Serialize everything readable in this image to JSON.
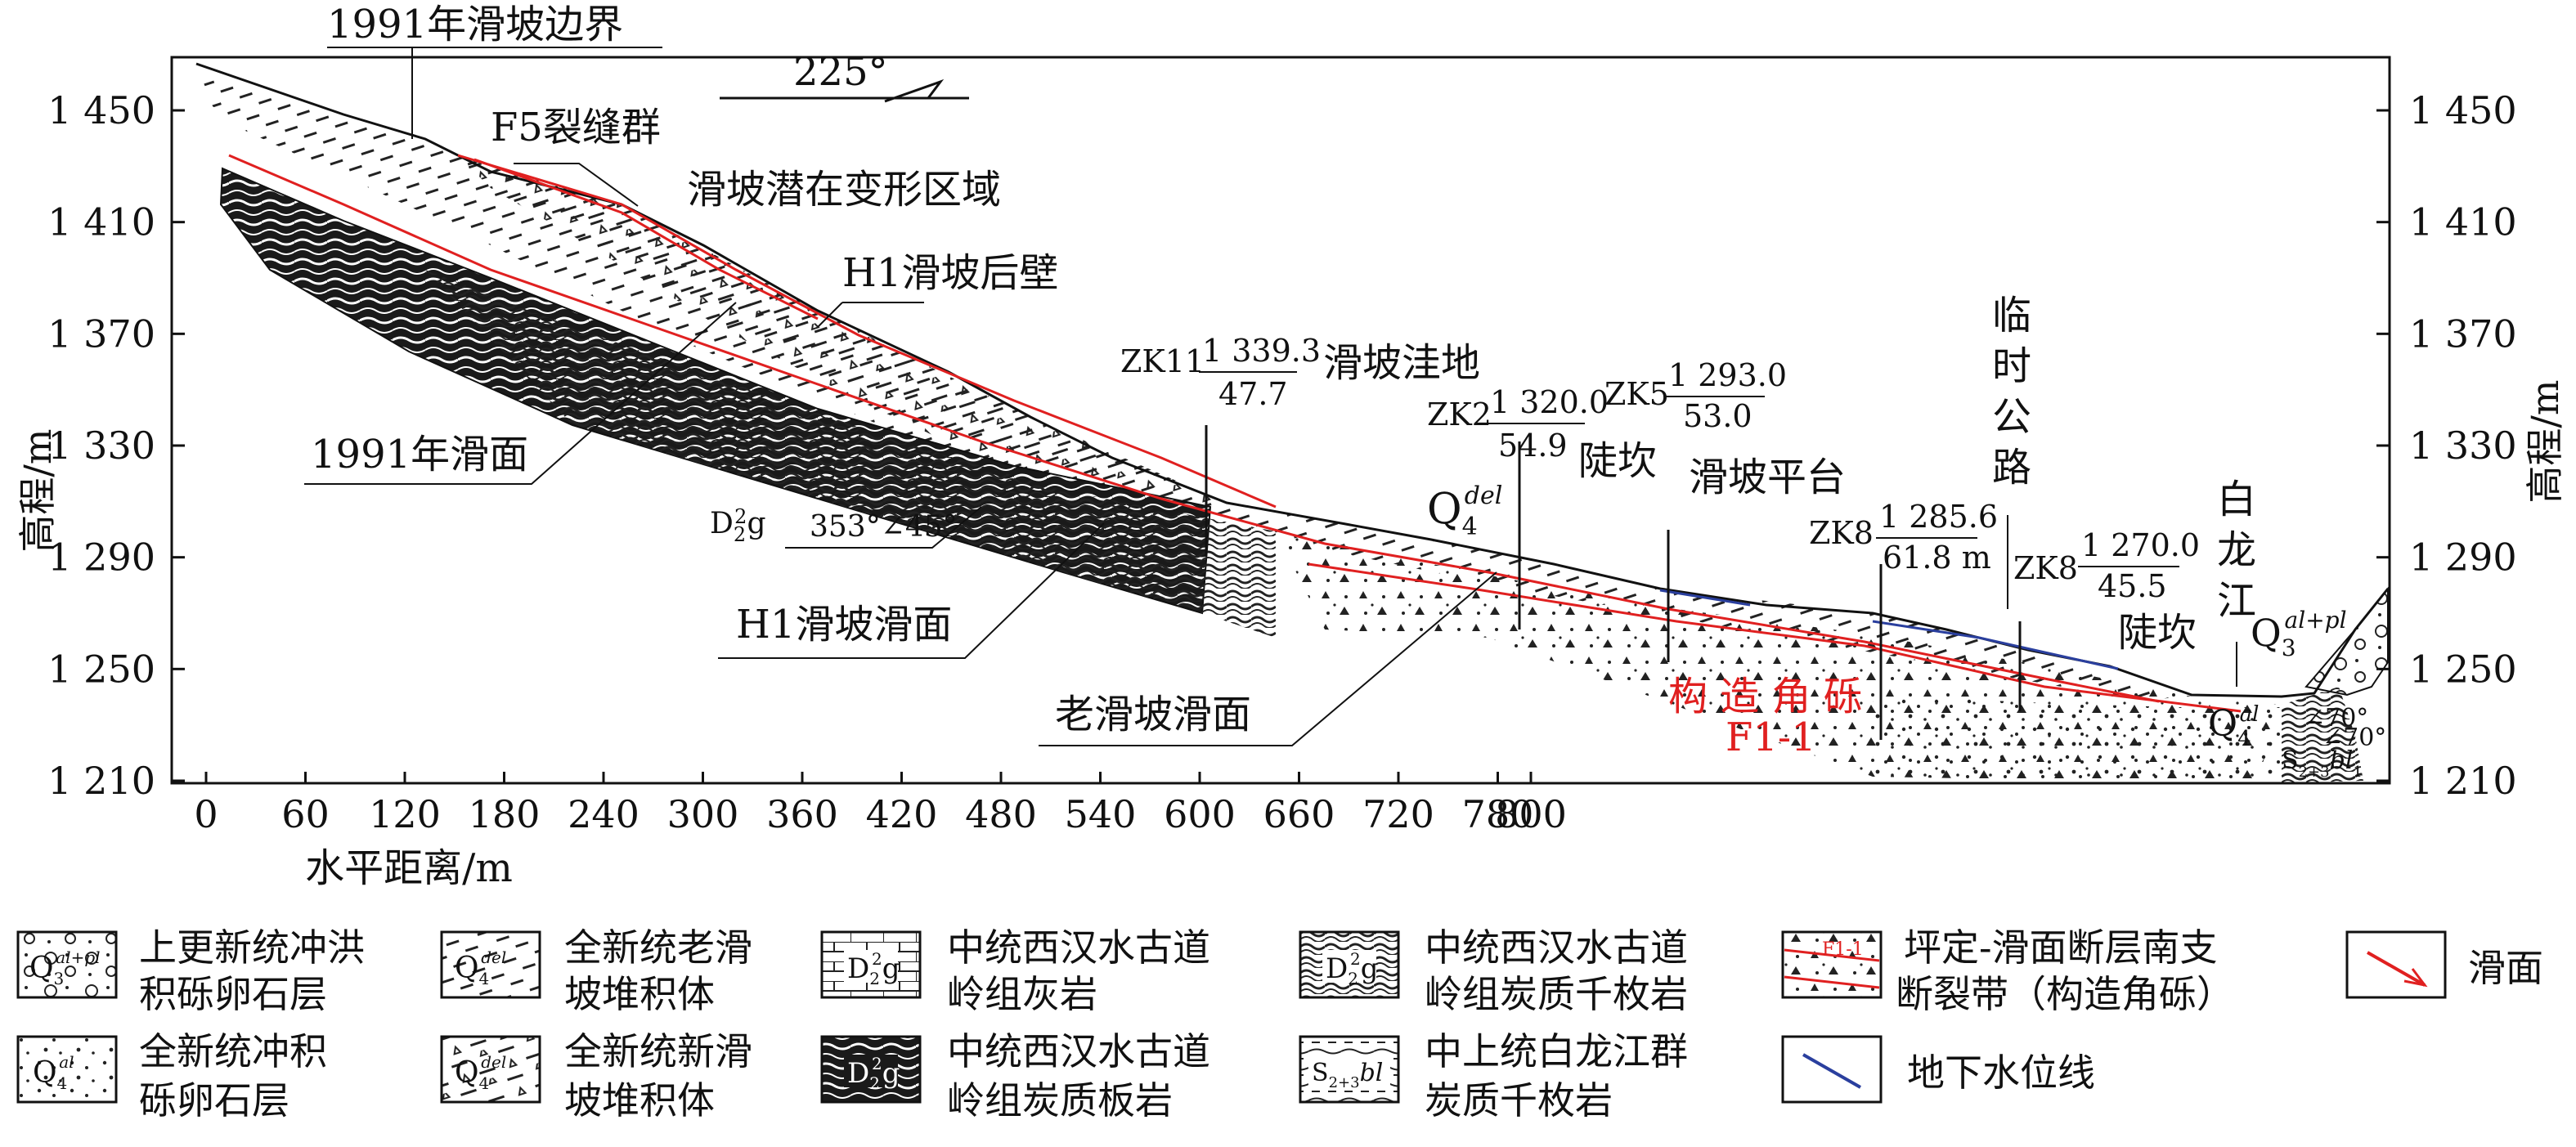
{
  "axes": {
    "y_left_label": "高程/m",
    "y_right_label": "高程/m",
    "x_label": "水平距离/m",
    "y_ticks": [
      "1 450",
      "1 410",
      "1 370",
      "1 330",
      "1 290",
      "1 250",
      "1 210"
    ],
    "x_ticks": [
      "0",
      "60",
      "120",
      "180",
      "240",
      "300",
      "360",
      "420",
      "480",
      "540",
      "600",
      "660",
      "720",
      "780",
      "800"
    ]
  },
  "annotations": {
    "boundary_1991": "1991年滑坡边界",
    "direction": "225°",
    "f5": "F5裂缝群",
    "latent_zone": "滑坡潜在变形区域",
    "h1_scarp": "H1滑坡后壁",
    "slip_1991": "1991年滑面",
    "d2g_prefix": "D",
    "d2g_sub": "2",
    "d2g_sup": "2",
    "d2g_suffix": "g",
    "attitude": "353°∠45°",
    "h1_slip": "H1滑坡滑面",
    "old_slip": "老滑坡滑面",
    "depression": "滑坡洼地",
    "q4del_base": "Q",
    "q4del_sub": "4",
    "q4del_sup": "del",
    "steep1": "陡坎",
    "platform": "滑坡平台",
    "road": "临时公路",
    "steep2": "陡坎",
    "river": "白龙江",
    "q3_base": "Q",
    "q3_sub": "3",
    "q3_sup": "al+pl",
    "q4al_base": "Q",
    "q4al_sub": "4",
    "q4al_sup": "al",
    "breccia": "构 造 角 砾",
    "f11": "F1-1",
    "dip1": "∠70°",
    "dip2": "∠70°",
    "s_label": "S",
    "s_sub": "2+3",
    "s_suffix": "bl",
    "s_sub2": "1"
  },
  "boreholes": [
    {
      "name": "ZK11",
      "elev": "1 339.3",
      "depth": "47.7"
    },
    {
      "name": "ZK2",
      "elev": "1 320.0",
      "depth": "54.9"
    },
    {
      "name": "ZK5",
      "elev": "1 293.0",
      "depth": "53.0"
    },
    {
      "name": "ZK8",
      "elev": "1 285.6",
      "depth": "61.8 m"
    },
    {
      "name": "ZK8",
      "elev": "1 270.0",
      "depth": "45.5"
    }
  ],
  "legend": [
    {
      "symbol": "Q3al+pl",
      "sym_base": "Q",
      "sym_sub": "3",
      "sym_sup": "al+pl",
      "line1": "上更新统冲洪",
      "line2": "积砾卵石层"
    },
    {
      "symbol": "Q4del",
      "sym_base": "Q",
      "sym_sub": "4",
      "sym_sup": "del",
      "line1": "全新统老滑",
      "line2": "坡堆积体"
    },
    {
      "symbol": "D2g",
      "sym_base": "D",
      "sym_sub": "2",
      "sym_sup": "2",
      "sym_suffix": "g",
      "line1": "中统西汉水古道",
      "line2": "岭组灰岩"
    },
    {
      "symbol": "D2g",
      "sym_base": "D",
      "sym_sub": "2",
      "sym_sup": "2",
      "sym_suffix": "g",
      "line1": "中统西汉水古道",
      "line2": "岭组炭质千枚岩"
    },
    {
      "symbol": "F1-1",
      "line1": "坪定-滑面断层南支",
      "line2": "断裂带（构造角砾）"
    },
    {
      "symbol": "",
      "line1": "滑面",
      "line2": ""
    },
    {
      "symbol": "Q4al",
      "sym_base": "Q",
      "sym_sub": "4",
      "sym_sup": "al",
      "line1": "全新统冲积",
      "line2": "砾卵石层"
    },
    {
      "symbol": "Q4del",
      "sym_base": "Q",
      "sym_sub": "4",
      "sym_sup": "del",
      "line1": "全新统新滑",
      "line2": "坡堆积体"
    },
    {
      "symbol": "D2g",
      "sym_base": "D",
      "sym_sub": "2",
      "sym_sup": "2",
      "sym_suffix": "g",
      "line1": "中统西汉水古道",
      "line2": "岭组炭质板岩"
    },
    {
      "symbol": "S2+3bl",
      "sym_base": "S",
      "sym_sub": "2+3",
      "sym_sup": "",
      "sym_suffix": "bl",
      "line1": "中上统白龙江群",
      "line2": "炭质千枚岩"
    },
    {
      "symbol": "",
      "line1": "地下水位线",
      "line2": ""
    }
  ],
  "colors": {
    "slip_line": "#e02020",
    "water_line": "#2a3f9e",
    "breccia_text": "#e02020",
    "ink": "#111111"
  }
}
